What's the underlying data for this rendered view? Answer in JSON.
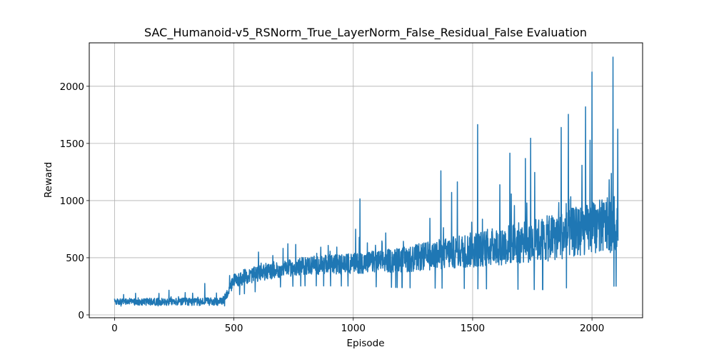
{
  "chart_data": {
    "type": "line",
    "title": "SAC_Humanoid-v5_RSNorm_True_LayerNorm_False_Residual_False Evaluation",
    "xlabel": "Episode",
    "ylabel": "Reward",
    "xlim": [
      -106,
      2212
    ],
    "ylim": [
      -25,
      2380
    ],
    "xticks": [
      0,
      500,
      1000,
      1500,
      2000
    ],
    "yticks": [
      0,
      500,
      1000,
      1500,
      2000
    ],
    "grid": true,
    "series": [
      {
        "color": "#1f77b4",
        "n_points": 2110,
        "regime_anchors": [
          {
            "x": 0,
            "base": 115,
            "spread": 30,
            "spike": 80
          },
          {
            "x": 450,
            "base": 115,
            "spread": 35,
            "spike": 130
          },
          {
            "x": 470,
            "base": 180,
            "spread": 40,
            "spike": 100
          },
          {
            "x": 500,
            "base": 300,
            "spread": 60,
            "spike": 150
          },
          {
            "x": 600,
            "base": 360,
            "spread": 70,
            "spike": 200
          },
          {
            "x": 700,
            "base": 400,
            "spread": 70,
            "spike": 220
          },
          {
            "x": 800,
            "base": 430,
            "spread": 80,
            "spike": 250
          },
          {
            "x": 1000,
            "base": 450,
            "spread": 90,
            "spike": 400
          },
          {
            "x": 1200,
            "base": 480,
            "spread": 110,
            "spike": 450
          },
          {
            "x": 1400,
            "base": 540,
            "spread": 140,
            "spike": 600
          },
          {
            "x": 1600,
            "base": 600,
            "spread": 170,
            "spike": 700
          },
          {
            "x": 1800,
            "base": 660,
            "spread": 200,
            "spike": 900
          },
          {
            "x": 2000,
            "base": 760,
            "spread": 230,
            "spike": 1200
          },
          {
            "x": 2110,
            "base": 800,
            "spread": 250,
            "spike": 1300
          }
        ],
        "peaks": [
          {
            "x": 1521,
            "y": 1665
          },
          {
            "x": 1743,
            "y": 1545
          },
          {
            "x": 1871,
            "y": 1640
          },
          {
            "x": 1973,
            "y": 1820
          },
          {
            "x": 2000,
            "y": 2125
          },
          {
            "x": 2088,
            "y": 2255
          },
          {
            "x": 2108,
            "y": 1625
          },
          {
            "x": 1028,
            "y": 1015
          },
          {
            "x": 1367,
            "y": 1260
          },
          {
            "x": 1656,
            "y": 1415
          },
          {
            "x": 378,
            "y": 275
          }
        ]
      }
    ]
  }
}
